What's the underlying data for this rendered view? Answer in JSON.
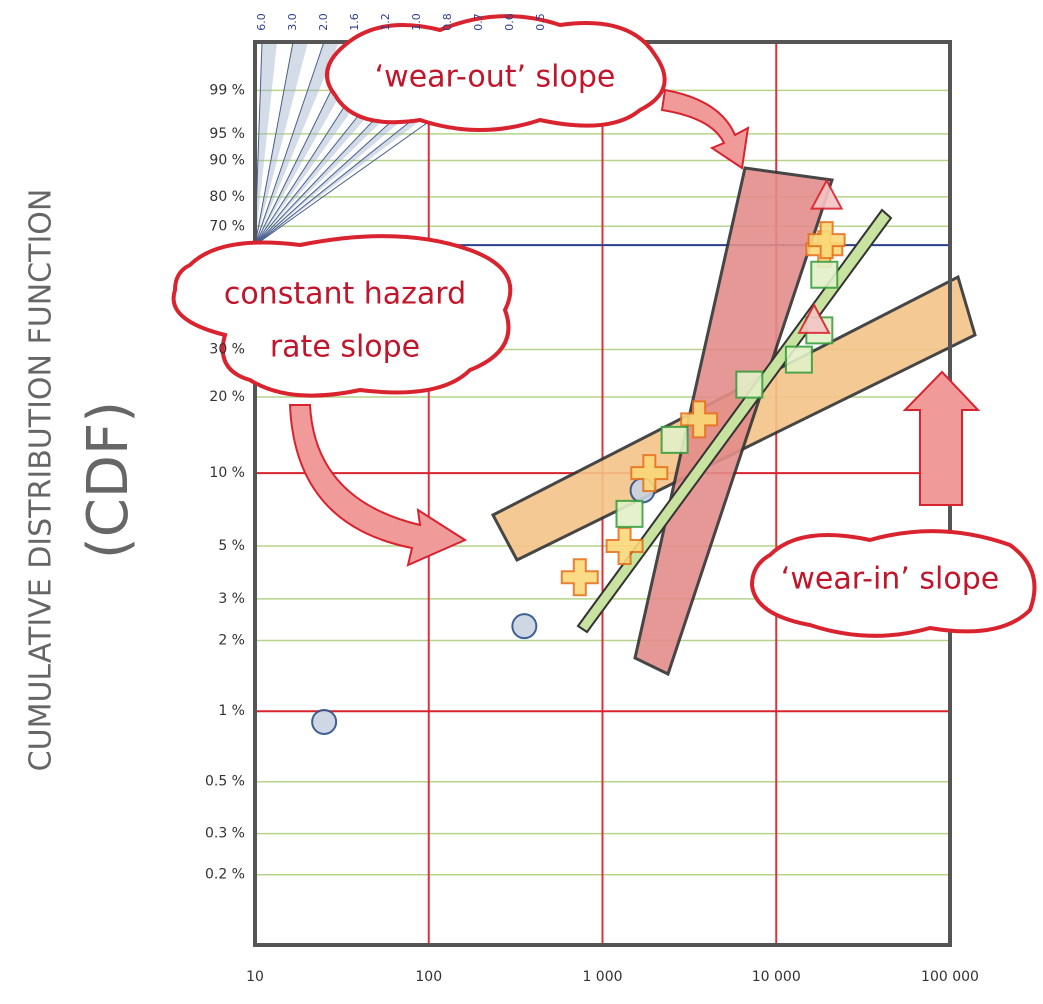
{
  "chart_data": {
    "type": "scatter",
    "y_axis_label": "CUMULATIVE DISTRIBUTION FUNCTION",
    "y_axis_label_sub": "(CDF)",
    "xscale": "log",
    "yscale": "weibull",
    "xlim": [
      10,
      100000
    ],
    "ylim": [
      0.1,
      99.94
    ],
    "xticks": [
      10,
      100,
      {
        "value": 1000,
        "label": "1 000"
      },
      {
        "value": 10000,
        "label": "10 000"
      },
      {
        "value": 100000,
        "label": "100 000"
      }
    ],
    "yticks": [
      {
        "value": 99,
        "label": "99 %"
      },
      {
        "value": 95,
        "label": "95 %"
      },
      {
        "value": 90,
        "label": "90 %"
      },
      {
        "value": 80,
        "label": "80 %"
      },
      {
        "value": 70,
        "label": "70 %"
      },
      {
        "value": 30,
        "label": "30 %"
      },
      {
        "value": 20,
        "label": "20 %"
      },
      {
        "value": 10,
        "label": "10 %"
      },
      {
        "value": 5,
        "label": "5 %"
      },
      {
        "value": 3,
        "label": "3 %"
      },
      {
        "value": 2,
        "label": "2 %"
      },
      {
        "value": 1,
        "label": "1 %"
      },
      {
        "value": 0.5,
        "label": "0.5 %"
      },
      {
        "value": 0.3,
        "label": "0.3 %"
      },
      {
        "value": 0.2,
        "label": "0.2 %"
      }
    ],
    "grid": true,
    "reference_lines": [
      {
        "value": 63.2,
        "color": "#2b3f8f"
      },
      {
        "value": 10,
        "color": "#d9232f"
      },
      {
        "value": 1,
        "color": "#d9232f"
      }
    ],
    "slope_labels": [
      "6.0",
      "3.0",
      "2.0",
      "1.6",
      "1.2",
      "1.0",
      "0.8",
      "0.7",
      "0.6",
      "0.5"
    ],
    "series": [
      {
        "marker": "circle",
        "color": "#2a4f8a",
        "fill": "#c9d3e0",
        "x": [
          25,
          355,
          1700
        ],
        "values": [
          0.9,
          2.3,
          8.5
        ]
      },
      {
        "marker": "cross",
        "color": "#e8731e",
        "fill": "#fbd878",
        "x": [
          740,
          1340,
          1860,
          3600,
          18900,
          19500
        ],
        "values": [
          3.7,
          5,
          10,
          16.4,
          61.7,
          65
        ]
      },
      {
        "marker": "square",
        "color": "#3aa040",
        "fill": "#e3f0c8",
        "x": [
          1430,
          2600,
          7000,
          13500,
          17700,
          18900
        ],
        "values": [
          6.8,
          13.6,
          22.3,
          27.6,
          35,
          52.6
        ]
      },
      {
        "marker": "triangle",
        "color": "#d9232f",
        "fill": "#f5c5c5",
        "x": [
          16500,
          19500
        ],
        "values": [
          38,
          80.4
        ]
      }
    ],
    "annotations": [
      "‘wear-out’ slope",
      "constant hazard",
      "rate slope",
      "‘wear-in’ slope"
    ]
  }
}
